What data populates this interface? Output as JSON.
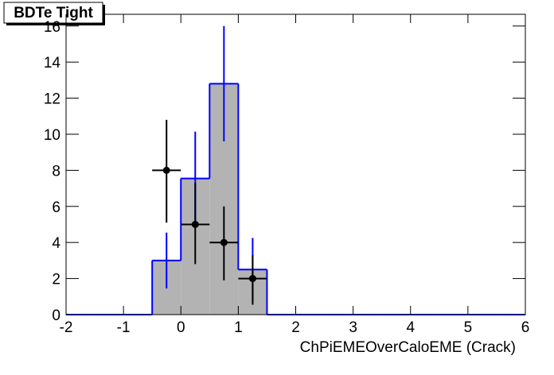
{
  "chart_data": {
    "type": "histogram",
    "title": "BDTe Tight",
    "xlabel": "ChPiEMEOverCaloEME (Crack)",
    "bins": [
      -2,
      -1.5,
      -1,
      -0.5,
      0,
      0.5,
      1,
      1.5,
      2,
      2.5,
      3,
      3.5,
      4,
      4.5,
      5,
      5.5,
      6
    ],
    "counts": [
      0,
      0,
      0,
      3,
      7.55,
      12.8,
      2.5,
      0,
      0,
      0,
      0,
      0,
      0,
      0,
      0,
      0
    ],
    "errors": [
      null,
      null,
      null,
      1.55,
      2.6,
      3.2,
      1.75,
      null,
      null,
      null,
      null,
      null,
      null,
      null,
      null,
      null
    ],
    "color": "#0000ff",
    "fill": "#b3b3b3",
    "points": {
      "color": "#000000",
      "x": [
        -0.25,
        0.25,
        0.75,
        1.25
      ],
      "y": [
        8,
        5,
        4,
        2
      ],
      "x_err": [
        0.25,
        0.25,
        0.25,
        0.25
      ],
      "y_err_low": [
        2.9,
        2.2,
        2.1,
        1.45
      ],
      "y_err_high": [
        2.8,
        2.3,
        2,
        1.3
      ]
    },
    "xlim": [
      -2,
      6
    ],
    "xticks": [
      -2,
      -1,
      0,
      1,
      2,
      3,
      4,
      5,
      6
    ],
    "ylim": [
      0,
      16.65
    ],
    "yticks": [
      0,
      2,
      4,
      6,
      8,
      10,
      12,
      14,
      16
    ]
  }
}
